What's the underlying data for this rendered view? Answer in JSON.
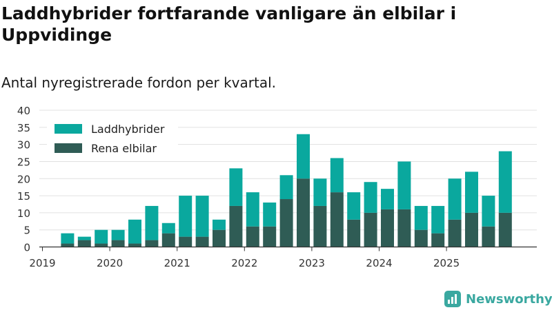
{
  "chart_data": {
    "type": "bar",
    "stacked": true,
    "title": "Laddhybrider fortfarande vanligare än elbilar i Uppvidinge",
    "subtitle": "Antal nyregistrerade fordon per kvartal.",
    "categories": [
      "2019-Q1",
      "2019-Q2",
      "2019-Q3",
      "2019-Q4",
      "2020-Q1",
      "2020-Q2",
      "2020-Q3",
      "2020-Q4",
      "2021-Q1",
      "2021-Q2",
      "2021-Q3",
      "2021-Q4",
      "2022-Q1",
      "2022-Q2",
      "2022-Q3",
      "2022-Q4",
      "2023-Q1",
      "2023-Q2",
      "2023-Q3",
      "2023-Q4",
      "2024-Q1",
      "2024-Q2",
      "2024-Q3",
      "2024-Q4",
      "2025-Q1",
      "2025-Q2",
      "2025-Q3",
      "2025-Q4"
    ],
    "year_ticks": [
      "2019",
      "2020",
      "2021",
      "2022",
      "2023",
      "2024",
      "2025"
    ],
    "series": [
      {
        "name": "Rena elbilar",
        "color": "#2f5c55",
        "values": [
          0,
          1,
          2,
          1,
          2,
          1,
          2,
          4,
          3,
          3,
          5,
          12,
          6,
          6,
          14,
          20,
          12,
          16,
          8,
          10,
          11,
          11,
          5,
          4,
          8,
          10,
          6,
          10
        ]
      },
      {
        "name": "Laddhybrider",
        "color": "#0aa89e",
        "values": [
          0,
          3,
          1,
          4,
          3,
          7,
          10,
          3,
          12,
          12,
          3,
          11,
          10,
          7,
          7,
          13,
          8,
          10,
          8,
          9,
          6,
          14,
          7,
          8,
          12,
          12,
          9,
          18
        ]
      }
    ],
    "y_ticks": [
      "0",
      "5",
      "10",
      "15",
      "20",
      "25",
      "30",
      "35",
      "40"
    ],
    "ylim": [
      0,
      40
    ],
    "grid": true,
    "legend": {
      "position": "top-left",
      "entries": [
        {
          "label": "Laddhybrider",
          "color": "#0aa89e"
        },
        {
          "label": "Rena elbilar",
          "color": "#2f5c55"
        }
      ]
    }
  },
  "brand": {
    "name": "Newsworthy",
    "color": "#3aa8a0"
  }
}
